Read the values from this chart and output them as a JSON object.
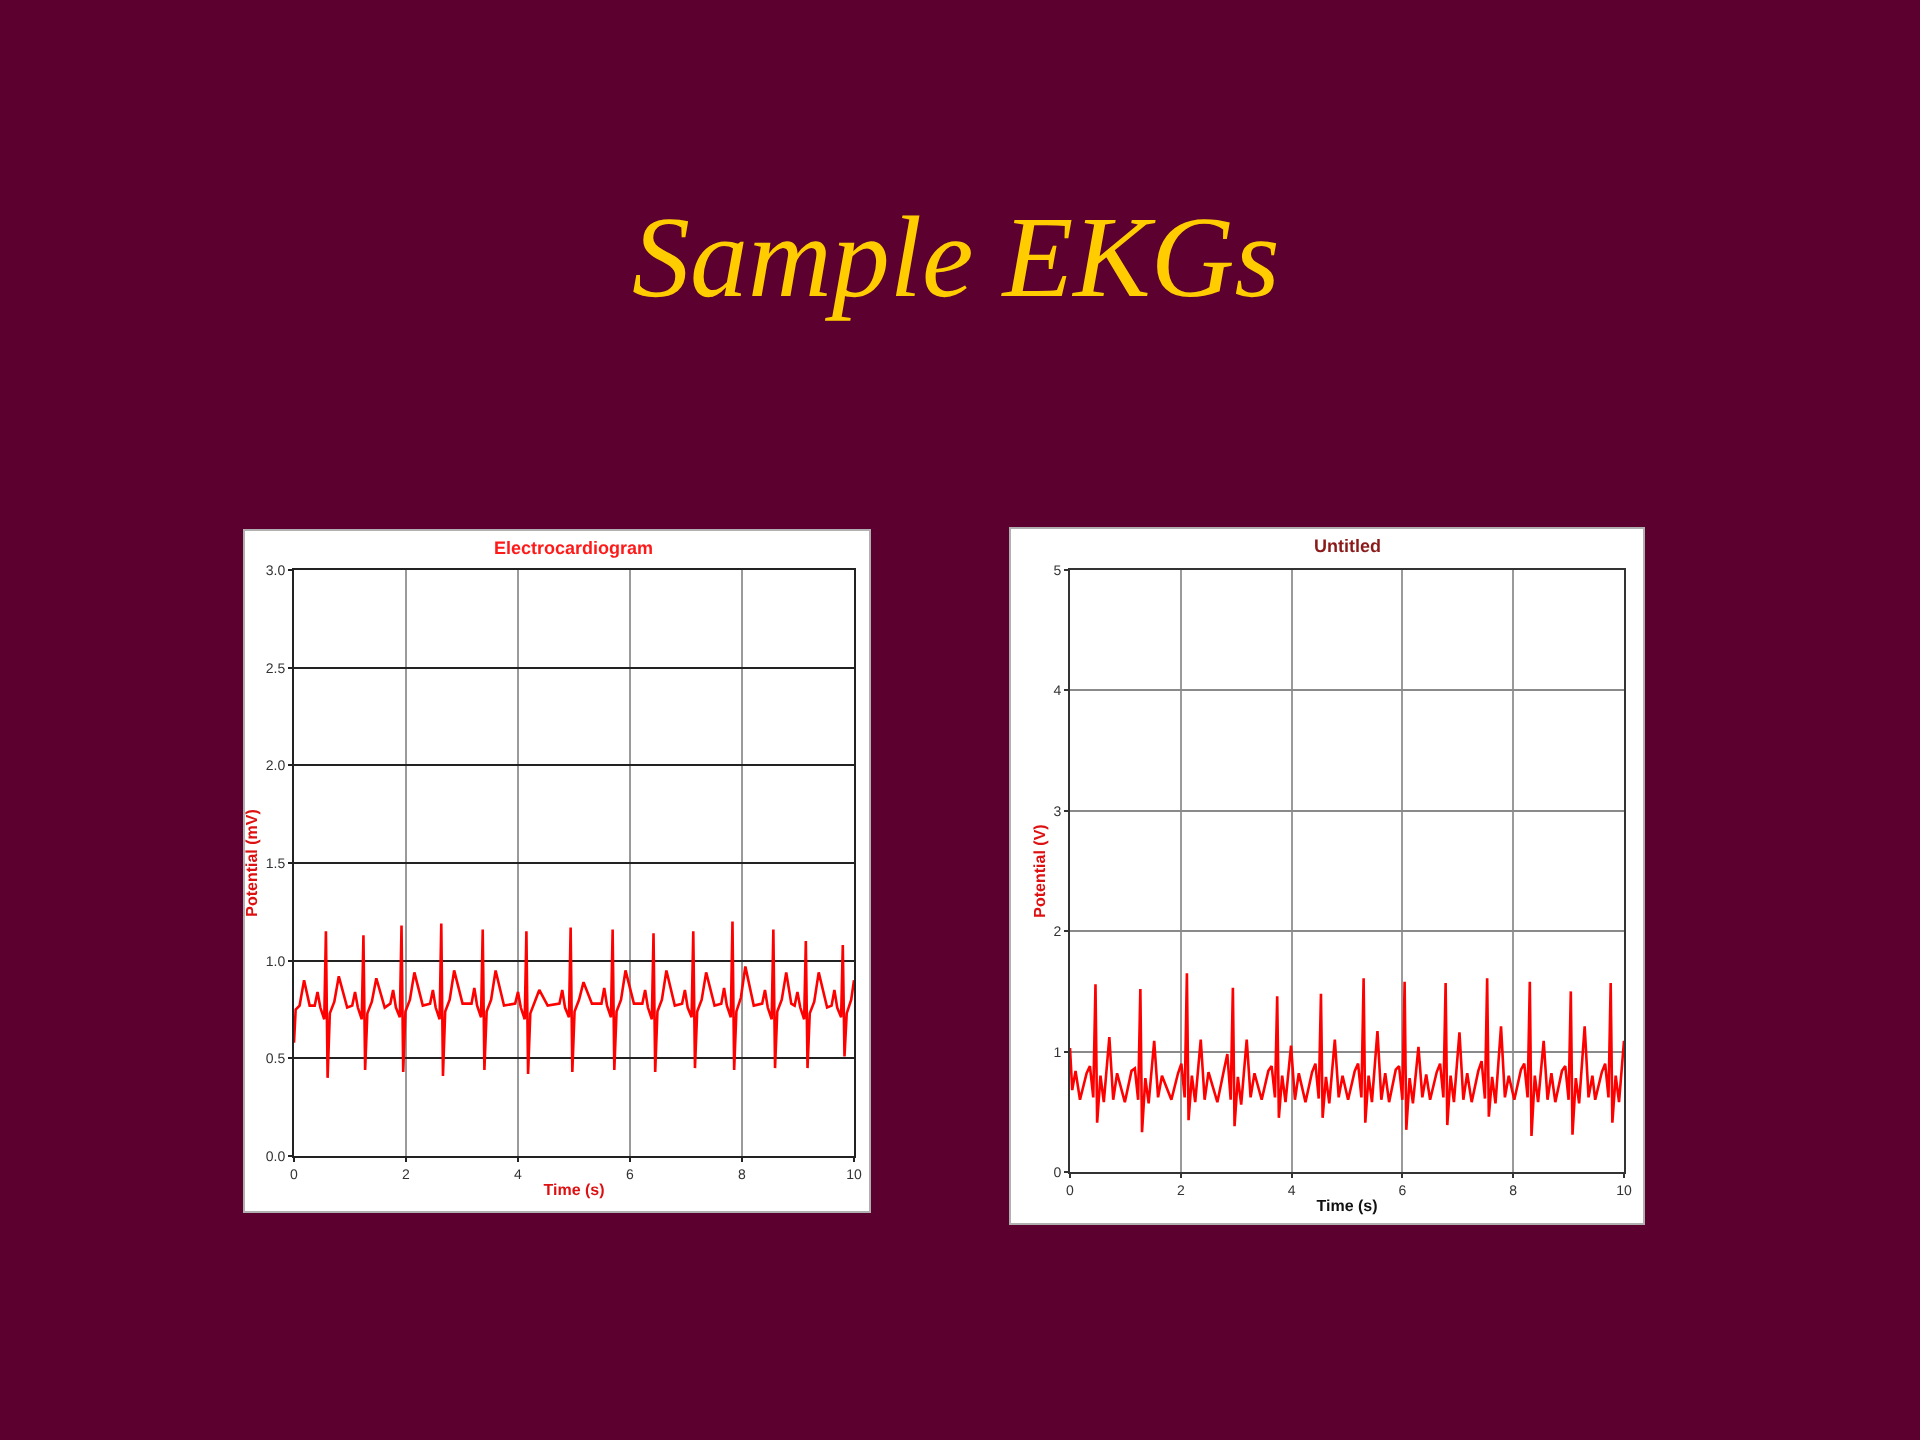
{
  "chart_data": [
    {
      "type": "other",
      "title": "Sample EKGs"
    },
    {
      "type": "line",
      "title": "Electrocardiogram",
      "xlabel": "Time (s)",
      "ylabel": "Potential (mV)",
      "x": [
        0.0,
        0.03,
        0.1,
        0.18,
        0.28,
        0.37,
        0.42,
        0.47,
        0.54,
        0.57,
        0.6,
        0.64,
        0.72,
        0.8,
        0.95,
        1.04,
        1.09,
        1.14,
        1.21,
        1.24,
        1.27,
        1.31,
        1.39,
        1.47,
        1.62,
        1.72,
        1.77,
        1.82,
        1.89,
        1.92,
        1.95,
        1.99,
        2.07,
        2.15,
        2.3,
        2.43,
        2.48,
        2.53,
        2.6,
        2.63,
        2.66,
        2.7,
        2.78,
        2.86,
        3.01,
        3.17,
        3.22,
        3.27,
        3.34,
        3.37,
        3.4,
        3.44,
        3.52,
        3.6,
        3.75,
        3.95,
        4.0,
        4.05,
        4.12,
        4.15,
        4.18,
        4.22,
        4.3,
        4.38,
        4.53,
        4.74,
        4.79,
        4.84,
        4.91,
        4.94,
        4.97,
        5.01,
        5.09,
        5.17,
        5.32,
        5.49,
        5.54,
        5.59,
        5.66,
        5.69,
        5.72,
        5.76,
        5.84,
        5.92,
        6.07,
        6.22,
        6.27,
        6.32,
        6.39,
        6.42,
        6.45,
        6.49,
        6.57,
        6.65,
        6.8,
        6.93,
        6.98,
        7.03,
        7.1,
        7.13,
        7.16,
        7.2,
        7.28,
        7.36,
        7.51,
        7.63,
        7.68,
        7.73,
        7.8,
        7.83,
        7.86,
        7.9,
        7.98,
        8.06,
        8.21,
        8.36,
        8.41,
        8.46,
        8.53,
        8.56,
        8.59,
        8.63,
        8.71,
        8.79,
        8.88,
        8.94,
        8.99,
        9.04,
        9.11,
        9.14,
        9.17,
        9.21,
        9.29,
        9.37,
        9.52,
        9.6,
        9.65,
        9.7,
        9.77,
        9.8,
        9.83,
        9.87,
        9.95,
        10.0
      ],
      "series": [
        {
          "color": "#ff0000",
          "values": [
            0.58,
            0.75,
            0.77,
            0.9,
            0.77,
            0.77,
            0.84,
            0.76,
            0.7,
            1.15,
            0.4,
            0.73,
            0.79,
            0.92,
            0.76,
            0.77,
            0.84,
            0.76,
            0.7,
            1.13,
            0.44,
            0.73,
            0.79,
            0.91,
            0.76,
            0.78,
            0.85,
            0.76,
            0.71,
            1.18,
            0.43,
            0.74,
            0.8,
            0.94,
            0.77,
            0.78,
            0.85,
            0.76,
            0.7,
            1.19,
            0.41,
            0.74,
            0.8,
            0.95,
            0.78,
            0.78,
            0.86,
            0.77,
            0.71,
            1.16,
            0.44,
            0.74,
            0.8,
            0.95,
            0.77,
            0.78,
            0.84,
            0.76,
            0.7,
            1.15,
            0.42,
            0.73,
            0.79,
            0.85,
            0.77,
            0.78,
            0.85,
            0.76,
            0.71,
            1.17,
            0.43,
            0.74,
            0.8,
            0.89,
            0.78,
            0.78,
            0.86,
            0.77,
            0.71,
            1.16,
            0.44,
            0.74,
            0.8,
            0.95,
            0.78,
            0.78,
            0.85,
            0.76,
            0.7,
            1.14,
            0.43,
            0.74,
            0.8,
            0.95,
            0.77,
            0.78,
            0.85,
            0.76,
            0.71,
            1.15,
            0.45,
            0.74,
            0.8,
            0.94,
            0.77,
            0.78,
            0.86,
            0.77,
            0.71,
            1.2,
            0.44,
            0.74,
            0.81,
            0.97,
            0.77,
            0.78,
            0.85,
            0.76,
            0.7,
            1.16,
            0.45,
            0.74,
            0.8,
            0.94,
            0.78,
            0.77,
            0.84,
            0.76,
            0.7,
            1.1,
            0.45,
            0.73,
            0.79,
            0.94,
            0.76,
            0.77,
            0.85,
            0.76,
            0.71,
            1.08,
            0.51,
            0.73,
            0.8,
            0.9
          ]
        }
      ],
      "xlim": [
        0,
        10
      ],
      "ylim": [
        0,
        3
      ],
      "xticks": [
        0,
        2,
        4,
        6,
        8,
        10
      ],
      "yticks": [
        {
          "value": 0,
          "label": "0.0"
        },
        0.5,
        {
          "value": 1,
          "label": "1.0"
        },
        1.5,
        {
          "value": 2,
          "label": "2.0"
        },
        2.5,
        {
          "value": 3,
          "label": "3.0"
        }
      ],
      "grid": true
    },
    {
      "type": "line",
      "title": "Untitled",
      "xlabel": "Time (s)",
      "ylabel": "Potential (V)",
      "x": [
        0.0,
        0.04,
        0.1,
        0.18,
        0.3,
        0.36,
        0.42,
        0.46,
        0.49,
        0.55,
        0.61,
        0.71,
        0.78,
        0.85,
        0.99,
        1.11,
        1.17,
        1.23,
        1.27,
        1.3,
        1.36,
        1.42,
        1.52,
        1.59,
        1.66,
        1.83,
        1.95,
        2.01,
        2.07,
        2.11,
        2.14,
        2.2,
        2.26,
        2.36,
        2.43,
        2.5,
        2.66,
        2.78,
        2.84,
        2.9,
        2.94,
        2.97,
        3.03,
        3.09,
        3.19,
        3.26,
        3.33,
        3.46,
        3.58,
        3.64,
        3.7,
        3.74,
        3.77,
        3.83,
        3.89,
        3.99,
        4.06,
        4.13,
        4.25,
        4.37,
        4.43,
        4.49,
        4.53,
        4.56,
        4.62,
        4.68,
        4.78,
        4.85,
        4.92,
        5.02,
        5.14,
        5.2,
        5.26,
        5.3,
        5.33,
        5.39,
        5.45,
        5.55,
        5.62,
        5.69,
        5.76,
        5.88,
        5.94,
        6.0,
        6.04,
        6.07,
        6.13,
        6.19,
        6.29,
        6.36,
        6.43,
        6.5,
        6.62,
        6.68,
        6.74,
        6.78,
        6.81,
        6.87,
        6.93,
        7.03,
        7.1,
        7.17,
        7.25,
        7.37,
        7.43,
        7.49,
        7.53,
        7.56,
        7.62,
        7.68,
        7.78,
        7.85,
        7.92,
        8.02,
        8.14,
        8.2,
        8.26,
        8.3,
        8.33,
        8.39,
        8.45,
        8.55,
        8.62,
        8.69,
        8.76,
        8.88,
        8.94,
        9.0,
        9.04,
        9.07,
        9.13,
        9.19,
        9.29,
        9.36,
        9.43,
        9.48,
        9.6,
        9.66,
        9.72,
        9.76,
        9.79,
        9.85,
        9.91,
        10.0
      ],
      "series": [
        {
          "color": "#ff0000",
          "values": [
            1.03,
            0.68,
            0.84,
            0.6,
            0.82,
            0.88,
            0.62,
            1.56,
            0.41,
            0.8,
            0.58,
            1.12,
            0.6,
            0.82,
            0.58,
            0.84,
            0.86,
            0.6,
            1.52,
            0.33,
            0.78,
            0.57,
            1.09,
            0.62,
            0.8,
            0.6,
            0.82,
            0.9,
            0.62,
            1.65,
            0.43,
            0.8,
            0.58,
            1.1,
            0.6,
            0.83,
            0.58,
            0.85,
            0.98,
            0.6,
            1.53,
            0.38,
            0.79,
            0.56,
            1.1,
            0.62,
            0.82,
            0.6,
            0.84,
            0.88,
            0.62,
            1.46,
            0.45,
            0.8,
            0.58,
            1.05,
            0.6,
            0.82,
            0.58,
            0.83,
            0.9,
            0.61,
            1.48,
            0.45,
            0.79,
            0.57,
            1.1,
            0.62,
            0.8,
            0.6,
            0.84,
            0.9,
            0.62,
            1.61,
            0.41,
            0.8,
            0.58,
            1.17,
            0.6,
            0.82,
            0.58,
            0.85,
            0.88,
            0.6,
            1.58,
            0.35,
            0.78,
            0.57,
            1.04,
            0.62,
            0.81,
            0.6,
            0.83,
            0.9,
            0.62,
            1.57,
            0.39,
            0.8,
            0.58,
            1.16,
            0.6,
            0.82,
            0.58,
            0.84,
            0.92,
            0.61,
            1.61,
            0.46,
            0.79,
            0.57,
            1.21,
            0.62,
            0.8,
            0.6,
            0.85,
            0.9,
            0.62,
            1.58,
            0.3,
            0.8,
            0.58,
            1.09,
            0.6,
            0.82,
            0.58,
            0.84,
            0.88,
            0.6,
            1.5,
            0.31,
            0.78,
            0.57,
            1.21,
            0.62,
            0.8,
            0.6,
            0.83,
            0.9,
            0.62,
            1.57,
            0.41,
            0.8,
            0.58,
            1.09
          ]
        }
      ],
      "xlim": [
        0,
        10
      ],
      "ylim": [
        0,
        5
      ],
      "xticks": [
        0,
        2,
        4,
        6,
        8,
        10
      ],
      "yticks": [
        0,
        1,
        2,
        3,
        4,
        5
      ],
      "grid": true
    }
  ]
}
